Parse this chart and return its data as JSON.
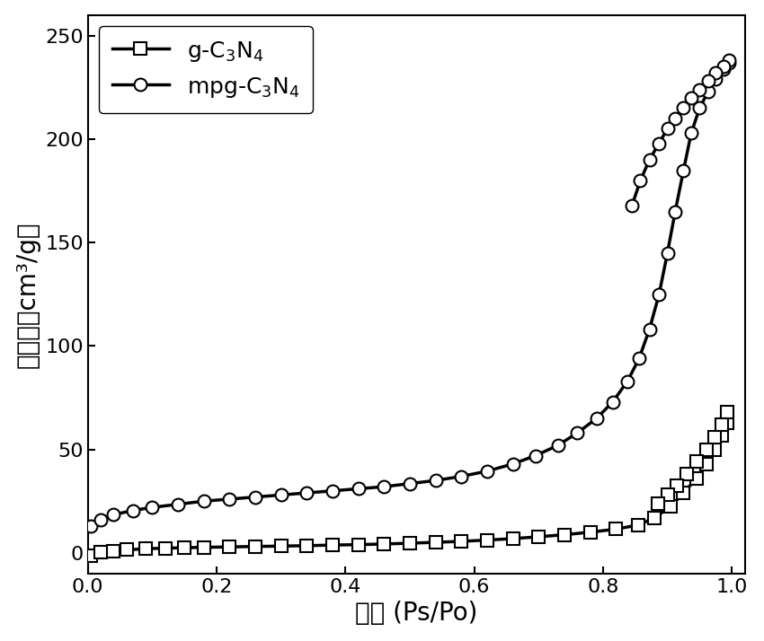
{
  "title": "",
  "xlabel": "压力 (Ps/Po)",
  "ylabel": "吸附量（cm³/g）",
  "xlim": [
    0.0,
    1.02
  ],
  "ylim": [
    -10,
    260
  ],
  "xticks": [
    0.0,
    0.2,
    0.4,
    0.6,
    0.8,
    1.0
  ],
  "yticks": [
    0,
    50,
    100,
    150,
    200,
    250
  ],
  "background_color": "#ffffff",
  "line_color": "#000000",
  "linewidth": 2.5,
  "markersize": 10,
  "legend_labels": [
    "g-C$_3$N$_4$",
    "mpg-C$_3$N$_4$"
  ],
  "g_C3N4_ads_x": [
    0.005,
    0.02,
    0.04,
    0.06,
    0.09,
    0.12,
    0.15,
    0.18,
    0.22,
    0.26,
    0.3,
    0.34,
    0.38,
    0.42,
    0.46,
    0.5,
    0.54,
    0.58,
    0.62,
    0.66,
    0.7,
    0.74,
    0.78,
    0.82,
    0.855,
    0.88,
    0.905,
    0.925,
    0.945,
    0.96,
    0.973,
    0.984,
    0.993
  ],
  "g_C3N4_ads_y": [
    -1.5,
    0.5,
    1.0,
    1.5,
    2.0,
    2.3,
    2.5,
    2.7,
    2.9,
    3.1,
    3.3,
    3.5,
    3.8,
    4.0,
    4.3,
    4.7,
    5.1,
    5.6,
    6.2,
    6.9,
    7.8,
    8.8,
    10.0,
    11.5,
    13.5,
    17.0,
    22.5,
    29.0,
    36.0,
    43.0,
    50.0,
    57.0,
    63.0
  ],
  "g_C3N4_des_x": [
    0.993,
    0.984,
    0.973,
    0.96,
    0.945,
    0.93,
    0.915,
    0.9,
    0.885
  ],
  "g_C3N4_des_y": [
    68.0,
    62.0,
    56.0,
    50.0,
    44.0,
    38.0,
    32.5,
    28.0,
    24.0
  ],
  "mpg_C3N4_ads_x": [
    0.005,
    0.02,
    0.04,
    0.07,
    0.1,
    0.14,
    0.18,
    0.22,
    0.26,
    0.3,
    0.34,
    0.38,
    0.42,
    0.46,
    0.5,
    0.54,
    0.58,
    0.62,
    0.66,
    0.695,
    0.73,
    0.76,
    0.79,
    0.815,
    0.838,
    0.856,
    0.872,
    0.887,
    0.9,
    0.912,
    0.925,
    0.937,
    0.95,
    0.963,
    0.975,
    0.987,
    0.995
  ],
  "mpg_C3N4_ads_y": [
    13.0,
    16.0,
    18.5,
    20.5,
    22.0,
    23.5,
    25.0,
    26.0,
    27.0,
    28.0,
    29.0,
    30.0,
    31.0,
    32.0,
    33.5,
    35.0,
    37.0,
    39.5,
    43.0,
    47.0,
    52.0,
    58.0,
    65.0,
    73.0,
    83.0,
    94.0,
    108.0,
    125.0,
    145.0,
    165.0,
    185.0,
    203.0,
    215.0,
    223.0,
    229.0,
    234.0,
    237.0
  ],
  "mpg_C3N4_des_x": [
    0.995,
    0.987,
    0.975,
    0.963,
    0.95,
    0.937,
    0.925,
    0.912,
    0.9,
    0.887,
    0.872,
    0.858,
    0.845
  ],
  "mpg_C3N4_des_y": [
    238.0,
    235.0,
    232.0,
    228.0,
    224.0,
    220.0,
    215.0,
    210.0,
    205.0,
    198.0,
    190.0,
    180.0,
    168.0
  ]
}
